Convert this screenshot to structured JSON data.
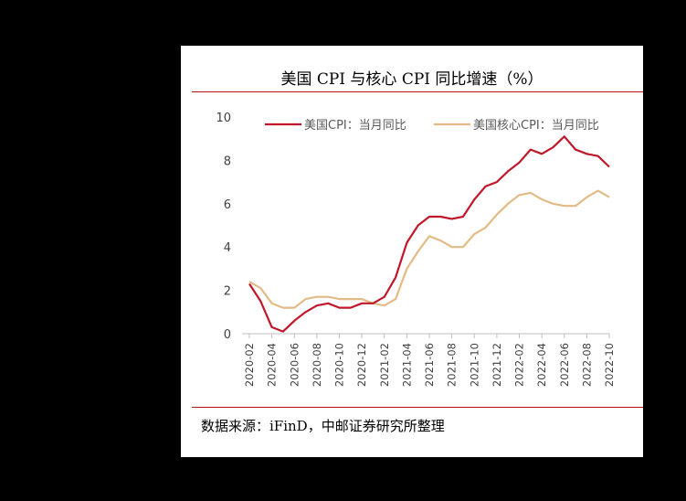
{
  "title": "美国 CPI 与核心 CPI 同比增速（%）",
  "source": "数据来源：iFinD，中邮证券研究所整理",
  "colors": {
    "cpi": "#c0182a",
    "core": "#e3bb86",
    "rule": "#b5121b"
  },
  "chart_data": {
    "type": "line",
    "title": "美国 CPI 与核心 CPI 同比增速（%）",
    "ylim": [
      0,
      10
    ],
    "yticks": [
      "0",
      "2",
      "4",
      "6",
      "8",
      "10"
    ],
    "legend_position": "top",
    "grid": false,
    "x_tick_labels": [
      "2020-02",
      "2020-04",
      "2020-06",
      "2020-08",
      "2020-10",
      "2020-12",
      "2021-02",
      "2021-04",
      "2021-06",
      "2021-08",
      "2021-10",
      "2021-12",
      "2022-02",
      "2022-04",
      "2022-06",
      "2022-08",
      "2022-10"
    ],
    "x": [
      "2020-02",
      "2020-03",
      "2020-04",
      "2020-05",
      "2020-06",
      "2020-07",
      "2020-08",
      "2020-09",
      "2020-10",
      "2020-11",
      "2020-12",
      "2021-01",
      "2021-02",
      "2021-03",
      "2021-04",
      "2021-05",
      "2021-06",
      "2021-07",
      "2021-08",
      "2021-09",
      "2021-10",
      "2021-11",
      "2021-12",
      "2022-01",
      "2022-02",
      "2022-03",
      "2022-04",
      "2022-05",
      "2022-06",
      "2022-07",
      "2022-08",
      "2022-09",
      "2022-10"
    ],
    "series": [
      {
        "name": "美国CPI：当月同比",
        "values": [
          2.3,
          1.5,
          0.3,
          0.1,
          0.6,
          1.0,
          1.3,
          1.4,
          1.2,
          1.2,
          1.4,
          1.4,
          1.7,
          2.6,
          4.2,
          5.0,
          5.4,
          5.4,
          5.3,
          5.4,
          6.2,
          6.8,
          7.0,
          7.5,
          7.9,
          8.5,
          8.3,
          8.6,
          9.1,
          8.5,
          8.3,
          8.2,
          7.7
        ]
      },
      {
        "name": "美国核心CPI：当月同比",
        "values": [
          2.4,
          2.1,
          1.4,
          1.2,
          1.2,
          1.6,
          1.7,
          1.7,
          1.6,
          1.6,
          1.6,
          1.4,
          1.3,
          1.6,
          3.0,
          3.8,
          4.5,
          4.3,
          4.0,
          4.0,
          4.6,
          4.9,
          5.5,
          6.0,
          6.4,
          6.5,
          6.2,
          6.0,
          5.9,
          5.9,
          6.3,
          6.6,
          6.3
        ]
      }
    ]
  }
}
